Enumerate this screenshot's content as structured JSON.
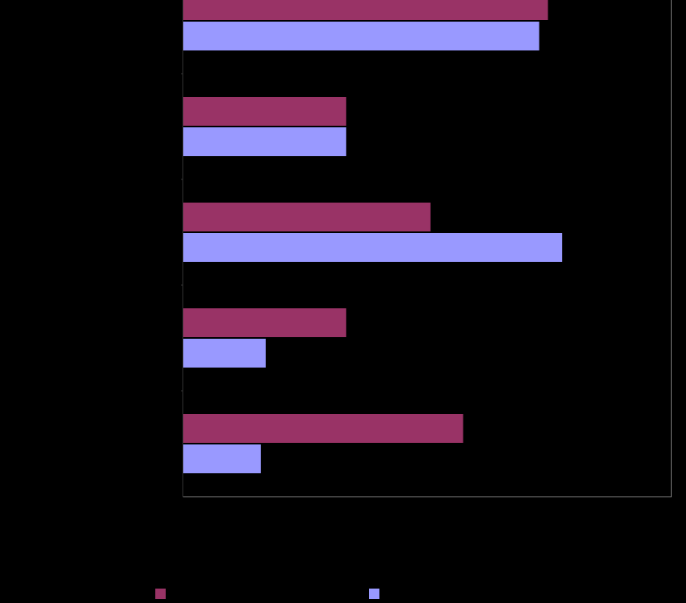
{
  "chart_data": {
    "type": "hbar",
    "categories": [
      null,
      null,
      null,
      null,
      null
    ],
    "series": [
      {
        "color": "#993366",
        "values": [
          74.8,
          33.4,
          50.7,
          33.4,
          57.4
        ]
      },
      {
        "color": "#9999ff",
        "values": [
          73.0,
          33.4,
          77.7,
          16.9,
          15.9
        ]
      }
    ],
    "xlim": [
      0,
      100
    ]
  }
}
